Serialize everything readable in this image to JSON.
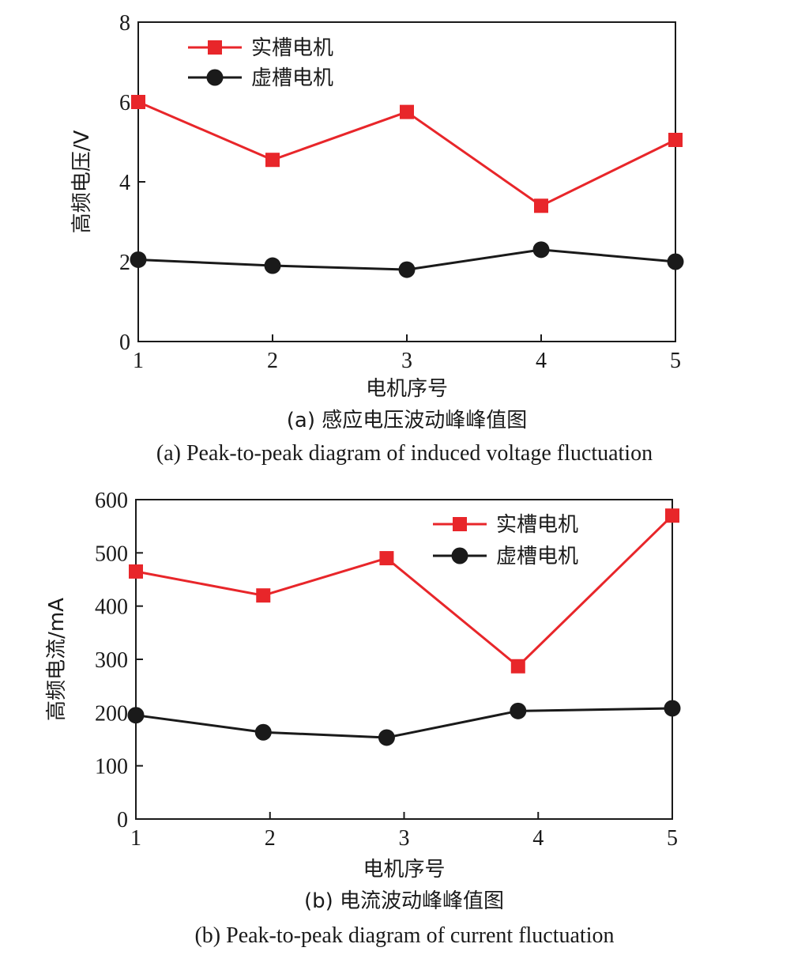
{
  "chart_data": [
    {
      "type": "line",
      "xlabel": "电机序号",
      "ylabel": "高频电压/V",
      "x": [
        1,
        2,
        3,
        4,
        5
      ],
      "xlim": [
        1,
        5
      ],
      "ylim": [
        0,
        8
      ],
      "yticks": [
        0,
        2,
        4,
        6,
        8
      ],
      "legend_position": "top-left",
      "grid": false,
      "series": [
        {
          "name": "实槽电机",
          "color": "#e8262a",
          "marker": "square",
          "x": [
            1,
            2,
            3,
            4,
            5
          ],
          "values": [
            6.0,
            4.55,
            5.75,
            3.4,
            5.05
          ]
        },
        {
          "name": "虚槽电机",
          "color": "#1a1a1a",
          "marker": "circle",
          "x": [
            1,
            2,
            3,
            4,
            5
          ],
          "values": [
            2.05,
            1.9,
            1.8,
            2.3,
            2.0
          ]
        }
      ],
      "caption_cn": "(a) 感应电压波动峰峰值图",
      "caption_en": "(a) Peak-to-peak diagram of induced voltage fluctuation"
    },
    {
      "type": "line",
      "xlabel": "电机序号",
      "ylabel": "高频电流/mA",
      "x": [
        1,
        2,
        3,
        4,
        5
      ],
      "xlim": [
        1,
        5
      ],
      "ylim": [
        0,
        600
      ],
      "yticks": [
        0,
        100,
        200,
        300,
        400,
        500,
        600
      ],
      "legend_position": "top-right",
      "grid": false,
      "series": [
        {
          "name": "实槽电机",
          "color": "#e8262a",
          "marker": "square",
          "x": [
            1,
            1.95,
            2.87,
            3.85,
            5
          ],
          "values": [
            465,
            420,
            490,
            287,
            570
          ]
        },
        {
          "name": "虚槽电机",
          "color": "#1a1a1a",
          "marker": "circle",
          "x": [
            1,
            1.95,
            2.87,
            3.85,
            5
          ],
          "values": [
            195,
            163,
            153,
            203,
            208
          ]
        }
      ],
      "caption_cn": "(b) 电流波动峰峰值图",
      "caption_en": "(b) Peak-to-peak diagram of current fluctuation"
    }
  ]
}
